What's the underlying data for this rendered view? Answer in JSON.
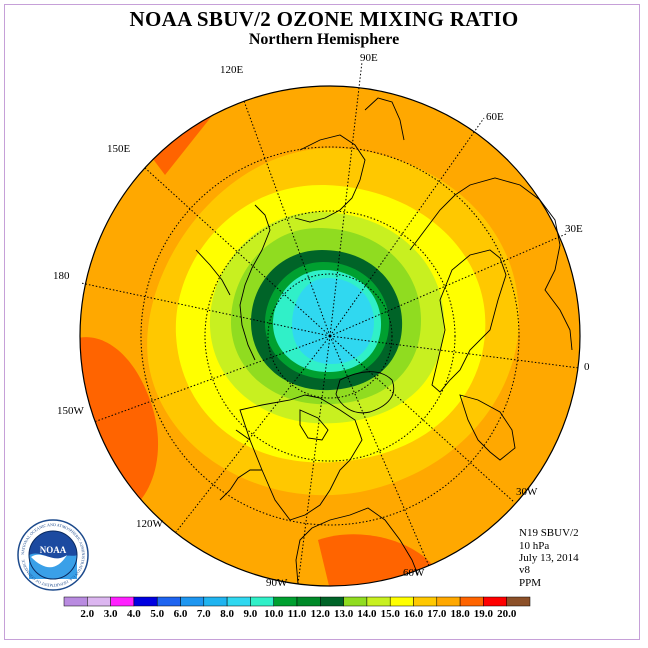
{
  "header": {
    "title": "NOAA SBUV/2 OZONE MIXING RATIO",
    "subtitle": "Northern Hemisphere"
  },
  "map": {
    "projection": "north-polar-stereographic",
    "longitude_labels": {
      "lon_90e": "90E",
      "lon_60e": "60E",
      "lon_30e": "30E",
      "lon_0": "0",
      "lon_30w": "30W",
      "lon_60w": "60W",
      "lon_90w": "90W",
      "lon_120w": "120W",
      "lon_150w": "150W",
      "lon_180": "180",
      "lon_150e": "150E",
      "lon_120e": "120E"
    }
  },
  "info": {
    "instrument": "N19 SBUV/2",
    "level": "10 hPa",
    "date": "July 13, 2014",
    "version": "v8",
    "units": "PPM"
  },
  "logo": {
    "text": "NOAA",
    "ring_text": "NATIONAL OCEANIC AND ATMOSPHERIC ADMINISTRATION U.S. DEPARTMENT OF COMMERCE"
  },
  "colorbar": {
    "labels": [
      "2.0",
      "3.0",
      "4.0",
      "5.0",
      "6.0",
      "7.0",
      "8.0",
      "9.0",
      "10.0",
      "11.0",
      "12.0",
      "13.0",
      "14.0",
      "15.0",
      "16.0",
      "17.0",
      "18.0",
      "19.0",
      "20.0"
    ],
    "colors": [
      "#b98be0",
      "#dcb6f0",
      "#ff20ff",
      "#0000e0",
      "#1e64f0",
      "#1e96f0",
      "#20b4f0",
      "#30d8f0",
      "#30f0c8",
      "#00a030",
      "#008a28",
      "#006428",
      "#90dc20",
      "#c8f020",
      "#ffff00",
      "#ffc800",
      "#ffa800",
      "#ff6400",
      "#ff0000",
      "#8c5028"
    ]
  }
}
